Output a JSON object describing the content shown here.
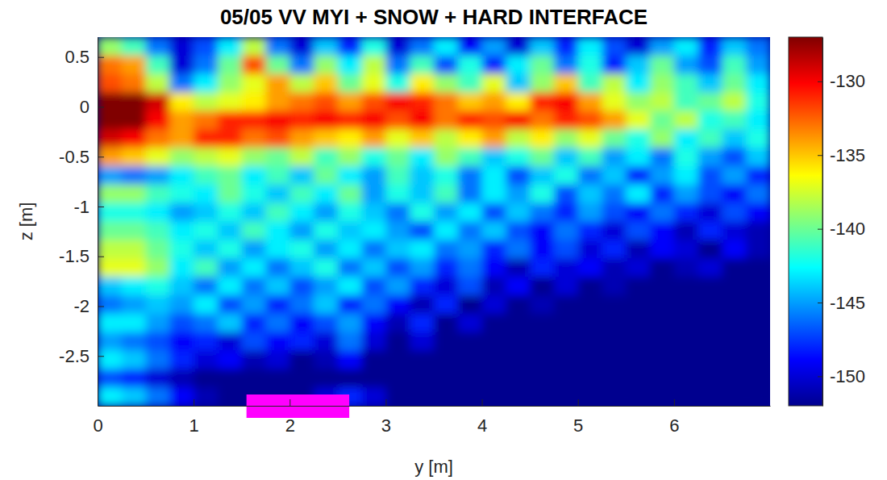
{
  "chart_data": {
    "type": "heatmap",
    "title": "05/05 VV MYI + SNOW + HARD INTERFACE",
    "xlabel": "y [m]",
    "ylabel": "z [m]",
    "xlim": [
      0,
      7
    ],
    "ylim": [
      -3,
      0.7
    ],
    "xticks": [
      0,
      1,
      2,
      3,
      4,
      5,
      6
    ],
    "yticks": [
      0.5,
      0,
      -0.5,
      -1,
      -1.5,
      -2,
      -2.5
    ],
    "x_edges": [
      0,
      0.25,
      0.5,
      0.75,
      1,
      1.25,
      1.5,
      1.75,
      2,
      2.25,
      2.5,
      2.75,
      3,
      3.25,
      3.5,
      3.75,
      4,
      4.25,
      4.5,
      4.75,
      5,
      5.25,
      5.5,
      5.75,
      6,
      6.25,
      6.5,
      6.75,
      7
    ],
    "y_edges": [
      0.7,
      0.515,
      0.33,
      0.145,
      -0.04,
      -0.225,
      -0.41,
      -0.595,
      -0.78,
      -0.965,
      -1.15,
      -1.335,
      -1.52,
      -1.705,
      -1.89,
      -2.075,
      -2.26,
      -2.445,
      -2.63,
      -2.815,
      -3.0
    ],
    "values": [
      [
        -139,
        -141,
        -146,
        -150,
        -147,
        -143,
        -138,
        -146,
        -150,
        -144,
        -148,
        -142,
        -150,
        -146,
        -143,
        -149,
        -145,
        -150,
        -144,
        -148,
        -143,
        -147,
        -150,
        -145,
        -143,
        -148,
        -144,
        -146
      ],
      [
        -133,
        -134,
        -141,
        -150,
        -146,
        -140,
        -132,
        -140,
        -146,
        -139,
        -143,
        -138,
        -146,
        -141,
        -147,
        -142,
        -148,
        -143,
        -140,
        -146,
        -142,
        -148,
        -144,
        -140,
        -145,
        -147,
        -141,
        -145
      ],
      [
        -132,
        -133,
        -138,
        -146,
        -143,
        -139,
        -137,
        -134,
        -138,
        -135,
        -140,
        -137,
        -142,
        -136,
        -139,
        -141,
        -137,
        -144,
        -139,
        -135,
        -141,
        -138,
        -143,
        -139,
        -141,
        -144,
        -140,
        -143
      ],
      [
        -126,
        -126,
        -129,
        -136,
        -138,
        -137,
        -136,
        -134,
        -133,
        -132,
        -134,
        -132,
        -130,
        -131,
        -133,
        -135,
        -134,
        -136,
        -131,
        -130,
        -134,
        -137,
        -139,
        -138,
        -141,
        -140,
        -138,
        -142
      ],
      [
        -127,
        -127,
        -130,
        -134,
        -133,
        -131,
        -131,
        -130,
        -131,
        -130,
        -131,
        -130,
        -132,
        -130,
        -133,
        -131,
        -132,
        -130,
        -133,
        -131,
        -132,
        -134,
        -137,
        -140,
        -138,
        -142,
        -141,
        -143
      ],
      [
        -129,
        -130,
        -133,
        -134,
        -131,
        -131,
        -133,
        -132,
        -134,
        -135,
        -136,
        -134,
        -137,
        -135,
        -138,
        -136,
        -134,
        -138,
        -136,
        -139,
        -137,
        -140,
        -142,
        -139,
        -143,
        -141,
        -144,
        -142
      ],
      [
        -134,
        -135,
        -137,
        -139,
        -138,
        -137,
        -139,
        -140,
        -138,
        -141,
        -139,
        -142,
        -140,
        -143,
        -139,
        -141,
        -144,
        -142,
        -140,
        -144,
        -141,
        -145,
        -143,
        -146,
        -142,
        -145,
        -147,
        -144
      ],
      [
        -145,
        -146,
        -145,
        -143,
        -141,
        -140,
        -143,
        -141,
        -144,
        -140,
        -143,
        -145,
        -141,
        -144,
        -142,
        -146,
        -143,
        -147,
        -144,
        -142,
        -146,
        -144,
        -148,
        -145,
        -143,
        -147,
        -145,
        -148
      ],
      [
        -139,
        -139,
        -141,
        -142,
        -143,
        -140,
        -142,
        -144,
        -141,
        -143,
        -140,
        -145,
        -142,
        -144,
        -141,
        -146,
        -143,
        -145,
        -142,
        -147,
        -144,
        -146,
        -143,
        -148,
        -145,
        -147,
        -149,
        -146
      ],
      [
        -142,
        -142,
        -143,
        -145,
        -144,
        -142,
        -144,
        -141,
        -143,
        -145,
        -142,
        -144,
        -146,
        -142,
        -145,
        -143,
        -147,
        -144,
        -146,
        -148,
        -145,
        -147,
        -149,
        -146,
        -148,
        -150,
        -147,
        -149
      ],
      [
        -140,
        -140,
        -141,
        -143,
        -142,
        -144,
        -141,
        -143,
        -145,
        -142,
        -144,
        -143,
        -145,
        -147,
        -143,
        -146,
        -144,
        -147,
        -149,
        -146,
        -148,
        -150,
        -147,
        -149,
        -151,
        -148,
        -150,
        -151
      ],
      [
        -138,
        -138,
        -140,
        -142,
        -144,
        -142,
        -145,
        -143,
        -142,
        -145,
        -143,
        -146,
        -144,
        -143,
        -146,
        -145,
        -148,
        -146,
        -149,
        -147,
        -150,
        -148,
        -151,
        -149,
        -150,
        -152,
        -149,
        -151
      ],
      [
        -137,
        -137,
        -139,
        -143,
        -141,
        -145,
        -143,
        -146,
        -144,
        -142,
        -146,
        -144,
        -147,
        -145,
        -148,
        -146,
        -149,
        -151,
        -148,
        -150,
        -149,
        -151,
        -150,
        -152,
        -151,
        -150,
        -152,
        -152
      ],
      [
        -144,
        -143,
        -142,
        -144,
        -146,
        -143,
        -146,
        -144,
        -147,
        -145,
        -143,
        -147,
        -145,
        -148,
        -150,
        -147,
        -151,
        -149,
        -152,
        -150,
        -152,
        -151,
        -152,
        -152,
        -152,
        -152,
        -152,
        -152
      ],
      [
        -146,
        -145,
        -144,
        -145,
        -143,
        -147,
        -145,
        -148,
        -146,
        -144,
        -148,
        -146,
        -149,
        -151,
        -148,
        -152,
        -150,
        -152,
        -151,
        -152,
        -152,
        -152,
        -152,
        -152,
        -152,
        -152,
        -152,
        -152
      ],
      [
        -143,
        -143,
        -145,
        -147,
        -146,
        -144,
        -148,
        -146,
        -149,
        -147,
        -145,
        -149,
        -151,
        -148,
        -152,
        -150,
        -152,
        -152,
        -152,
        -152,
        -152,
        -152,
        -152,
        -152,
        -152,
        -152,
        -152,
        -152
      ],
      [
        -145,
        -146,
        -147,
        -149,
        -148,
        -150,
        -147,
        -149,
        -148,
        -150,
        -146,
        -150,
        -152,
        -150,
        -152,
        -152,
        -152,
        -152,
        -152,
        -152,
        -152,
        -152,
        -152,
        -152,
        -152,
        -152,
        -152,
        -152
      ],
      [
        -143,
        -144,
        -146,
        -148,
        -150,
        -149,
        -151,
        -150,
        -152,
        -151,
        -149,
        -152,
        -152,
        -152,
        -152,
        -152,
        -152,
        -152,
        -152,
        -152,
        -152,
        -152,
        -152,
        -152,
        -152,
        -152,
        -152,
        -152
      ],
      [
        -147,
        -148,
        -150,
        -151,
        -152,
        -152,
        -152,
        -152,
        -152,
        -152,
        -152,
        -152,
        -152,
        -152,
        -152,
        -152,
        -152,
        -152,
        -152,
        -152,
        -152,
        -152,
        -152,
        -152,
        -152,
        -152,
        -152,
        -152
      ],
      [
        -143,
        -144,
        -146,
        -149,
        -151,
        -152,
        -152,
        -152,
        -152,
        -150,
        -148,
        -150,
        -152,
        -152,
        -152,
        -152,
        -152,
        -152,
        -152,
        -152,
        -152,
        -152,
        -152,
        -152,
        -152,
        -152,
        -152,
        -152
      ]
    ],
    "colorbar": {
      "range": [
        -152,
        -127
      ],
      "ticks": [
        -150,
        -145,
        -140,
        -135,
        -130
      ]
    },
    "highlight": {
      "x": [
        1.55,
        2.62
      ],
      "color": "#ff00ff"
    }
  }
}
